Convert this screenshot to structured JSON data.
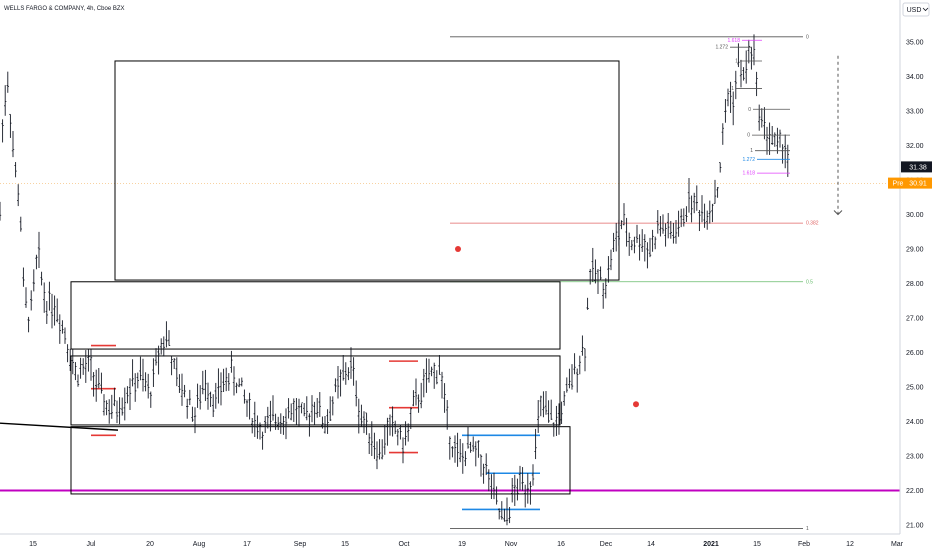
{
  "header": {
    "symbol_title": "WELLS FARGO & COMPANY, 4h, Cboe BZX",
    "currency": "USD"
  },
  "icons": {
    "currency_menu": "chevron-down-icon",
    "projection_arrow": "arrow-down-icon"
  },
  "colors": {
    "candle": "#131722",
    "magenta_line": "#c000c0",
    "fib_red": "#e06666",
    "fib_green": "#66bb6a",
    "fib_blue": "#1e88e5",
    "fib_gray": "#555555",
    "marker": "#e53935",
    "last_price_bg": "#131722",
    "pre_bg": "#ff9800"
  },
  "chart_data": {
    "type": "ohlc",
    "title": "WELLS FARGO & COMPANY, 4h, Cboe BZX",
    "ylim": [
      20.8,
      35.4
    ],
    "y_ticks": [
      "21.00",
      "22.00",
      "23.00",
      "24.00",
      "25.00",
      "26.00",
      "27.00",
      "28.00",
      "29.00",
      "30.00",
      "31.00",
      "32.00",
      "33.00",
      "34.00",
      "35.00"
    ],
    "x_ticks": [
      "15",
      "Jul",
      "20",
      "Aug",
      "17",
      "Sep",
      "15",
      "Oct",
      "19",
      "Nov",
      "16",
      "Dec",
      "14",
      "2021",
      "15",
      "Feb",
      "12",
      "Mar"
    ],
    "price_tags": {
      "last": "31.38",
      "pre_label": "Pre",
      "pre": "30.91"
    },
    "horizontal_levels": [
      {
        "price": 22.0,
        "color": "magenta"
      },
      {
        "price": 30.9,
        "color": "orange-dotted"
      }
    ],
    "fib_retracement": {
      "levels": [
        {
          "label": "0",
          "price": 35.15
        },
        {
          "label": "0.382",
          "price": 29.75
        },
        {
          "label": "0.5",
          "price": 28.05
        },
        {
          "label": "1",
          "price": 20.9
        }
      ]
    },
    "fib_small": [
      {
        "label": "1.618",
        "price": 35.05
      },
      {
        "label": "1.272",
        "price": 34.85
      },
      {
        "label": "1",
        "price": 34.45
      },
      {
        "label": "1",
        "price": 33.65
      },
      {
        "label": "0",
        "price": 33.05
      },
      {
        "label": "0",
        "price": 32.3
      },
      {
        "label": "1",
        "price": 31.85
      },
      {
        "label": "1.272",
        "price": 31.6
      },
      {
        "label": "1.618",
        "price": 31.2
      }
    ],
    "boxes": [
      {
        "p_top": 34.45,
        "p_bot": 28.1
      },
      {
        "p_top": 28.05,
        "p_bot": 26.1
      },
      {
        "p_top": 25.9,
        "p_bot": 23.9
      },
      {
        "p_top": 23.85,
        "p_bot": 21.9
      }
    ],
    "markers": [
      {
        "price": 29.0
      },
      {
        "price": 24.5
      }
    ],
    "segments_red": [
      {
        "price": 26.2
      },
      {
        "price": 24.95
      },
      {
        "price": 23.6
      },
      {
        "price": 25.75
      },
      {
        "price": 24.4
      },
      {
        "price": 23.1
      }
    ],
    "segments_blue": [
      {
        "price": 23.6
      },
      {
        "price": 22.5
      },
      {
        "price": 21.45
      }
    ],
    "trendline": {
      "from_price": 23.95,
      "to_price": 23.75
    },
    "projection_arrow": {
      "from_price": 34.6,
      "to_price": 30.0
    },
    "ohlc_path": [
      [
        0,
        30.0
      ],
      [
        3,
        33.0
      ],
      [
        8,
        33.9
      ],
      [
        14,
        31.5
      ],
      [
        20,
        30.3
      ],
      [
        24,
        27.5
      ],
      [
        30,
        27.0
      ],
      [
        38,
        28.9
      ],
      [
        45,
        27.5
      ],
      [
        55,
        27.4
      ],
      [
        66,
        26.5
      ],
      [
        75,
        25.4
      ],
      [
        90,
        25.6
      ],
      [
        100,
        24.8
      ],
      [
        110,
        24.3
      ],
      [
        120,
        24.5
      ],
      [
        130,
        25.0
      ],
      [
        140,
        25.3
      ],
      [
        150,
        24.8
      ],
      [
        160,
        26.2
      ],
      [
        168,
        26.5
      ],
      [
        175,
        25.3
      ],
      [
        185,
        24.8
      ],
      [
        195,
        24.2
      ],
      [
        205,
        25.2
      ],
      [
        215,
        24.6
      ],
      [
        225,
        25.2
      ],
      [
        232,
        25.4
      ],
      [
        240,
        25.0
      ],
      [
        250,
        24.3
      ],
      [
        262,
        23.7
      ],
      [
        275,
        24.1
      ],
      [
        285,
        24.2
      ],
      [
        295,
        24.4
      ],
      [
        305,
        24.0
      ],
      [
        315,
        24.6
      ],
      [
        325,
        23.9
      ],
      [
        335,
        24.8
      ],
      [
        345,
        25.4
      ],
      [
        352,
        25.6
      ],
      [
        360,
        24.2
      ],
      [
        370,
        23.7
      ],
      [
        380,
        23.0
      ],
      [
        388,
        23.8
      ],
      [
        395,
        23.8
      ],
      [
        405,
        23.3
      ],
      [
        412,
        24.3
      ],
      [
        420,
        24.8
      ],
      [
        430,
        25.3
      ],
      [
        440,
        25.6
      ],
      [
        446,
        24.2
      ],
      [
        452,
        23.4
      ],
      [
        460,
        22.9
      ],
      [
        470,
        23.2
      ],
      [
        480,
        23.0
      ],
      [
        487,
        22.5
      ],
      [
        493,
        21.9
      ],
      [
        500,
        21.3
      ],
      [
        505,
        21.0
      ],
      [
        512,
        21.8
      ],
      [
        520,
        22.2
      ],
      [
        530,
        22.2
      ],
      [
        536,
        23.2
      ],
      [
        540,
        24.5
      ],
      [
        548,
        24.1
      ],
      [
        556,
        23.9
      ],
      [
        565,
        24.6
      ],
      [
        575,
        25.5
      ],
      [
        585,
        26.2
      ],
      [
        590,
        28.4
      ],
      [
        596,
        28.2
      ],
      [
        606,
        28.0
      ],
      [
        612,
        28.9
      ],
      [
        618,
        29.4
      ],
      [
        622,
        29.8
      ],
      [
        630,
        29.2
      ],
      [
        640,
        29.3
      ],
      [
        650,
        29.0
      ],
      [
        660,
        29.7
      ],
      [
        670,
        29.4
      ],
      [
        680,
        29.6
      ],
      [
        688,
        30.4
      ],
      [
        695,
        30.3
      ],
      [
        705,
        30.0
      ],
      [
        712,
        30.3
      ],
      [
        718,
        30.8
      ],
      [
        722,
        32.0
      ],
      [
        728,
        33.5
      ],
      [
        734,
        33.3
      ],
      [
        738,
        34.4
      ],
      [
        744,
        33.9
      ],
      [
        748,
        34.6
      ],
      [
        753,
        34.9
      ],
      [
        756,
        33.8
      ],
      [
        760,
        32.9
      ],
      [
        766,
        32.4
      ],
      [
        772,
        32.2
      ],
      [
        778,
        31.9
      ],
      [
        784,
        32.1
      ],
      [
        790,
        31.4
      ]
    ]
  }
}
